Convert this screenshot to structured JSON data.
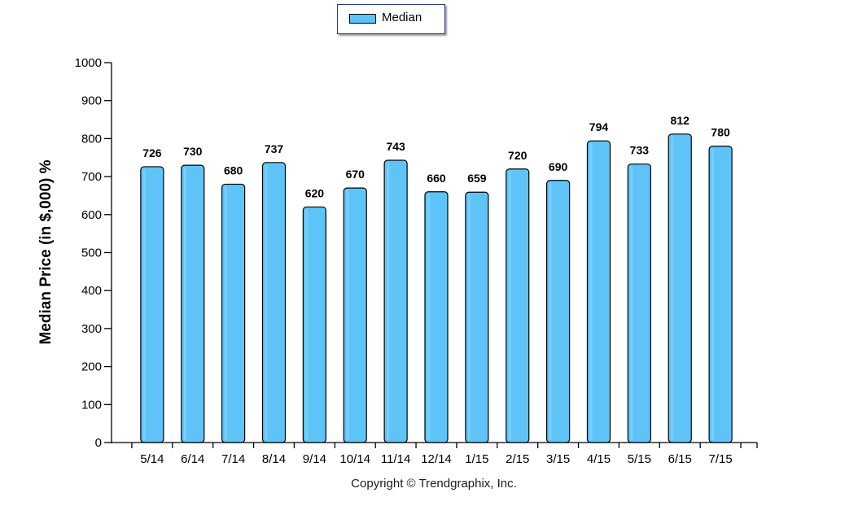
{
  "legend": {
    "label": "Median",
    "color": "#5ec4f7"
  },
  "copyright": "Copyright © Trendgraphix, Inc.",
  "chart_data": {
    "type": "bar",
    "categories": [
      "5/14",
      "6/14",
      "7/14",
      "8/14",
      "9/14",
      "10/14",
      "11/14",
      "12/14",
      "1/15",
      "2/15",
      "3/15",
      "4/15",
      "5/15",
      "6/15",
      "7/15"
    ],
    "series": [
      {
        "name": "Median",
        "values": [
          726,
          730,
          680,
          737,
          620,
          670,
          743,
          660,
          659,
          720,
          690,
          794,
          733,
          812,
          780
        ]
      }
    ],
    "data_labels": [
      "726",
      "730",
      "680",
      "737",
      "620",
      "670",
      "743",
      "660",
      "659",
      "720",
      "690",
      "794",
      "733",
      "812",
      "780"
    ],
    "ylabel": "Median Price (in $,000) %",
    "xlabel": "",
    "ylim": [
      0,
      1000
    ],
    "yticks": [
      "0",
      "100",
      "200",
      "300",
      "400",
      "500",
      "600",
      "700",
      "800",
      "900",
      "1000"
    ],
    "grid": false,
    "legend_position": "top-center",
    "bar_color": "#5ec4f7",
    "bar_outline_color": "#000000"
  }
}
